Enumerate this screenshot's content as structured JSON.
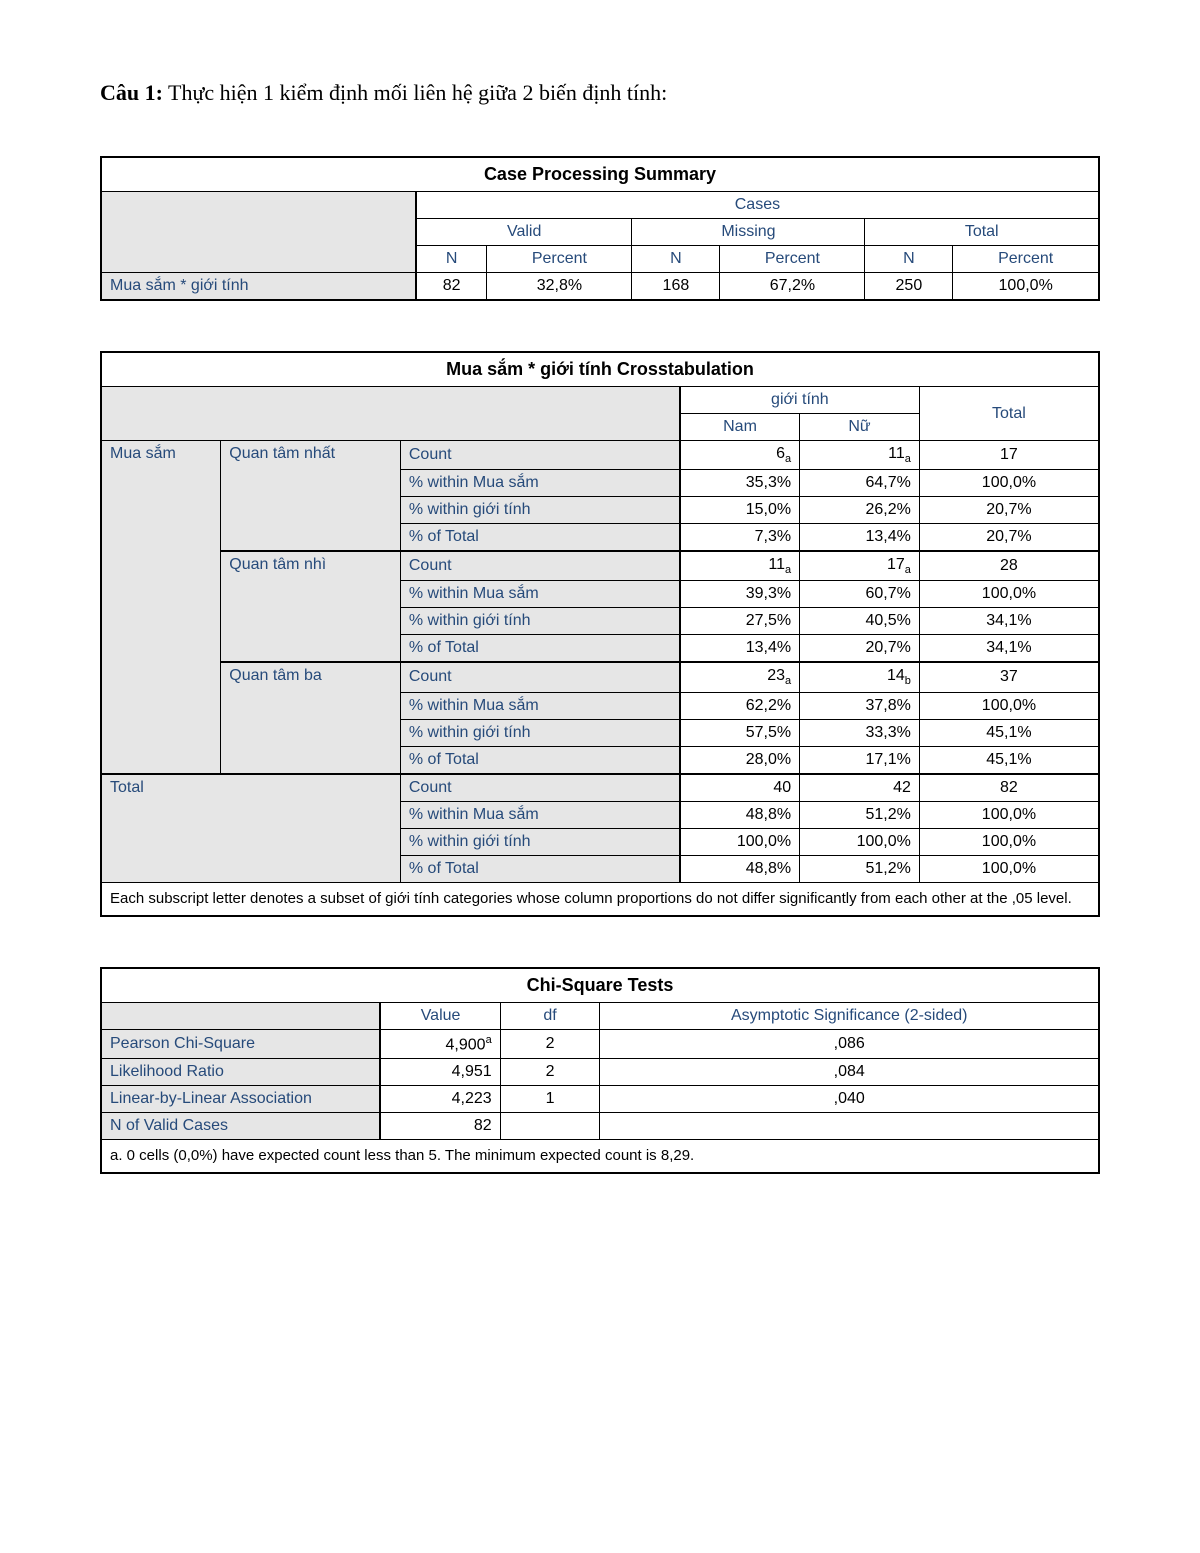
{
  "question": {
    "label_bold": "Câu 1:",
    "text": " Thực hiện 1 kiểm định mối liên hệ giữa 2 biến định tính:"
  },
  "table1": {
    "title": "Case Processing Summary",
    "group_header": "Cases",
    "subgroups": [
      "Valid",
      "Missing",
      "Total"
    ],
    "cols": [
      "N",
      "Percent",
      "N",
      "Percent",
      "N",
      "Percent"
    ],
    "row_label": "Mua sắm * giới tính",
    "values": [
      "82",
      "32,8%",
      "168",
      "67,2%",
      "250",
      "100,0%"
    ]
  },
  "table2": {
    "title": "Mua sắm * giới tính Crosstabulation",
    "group_header": "giới tính",
    "subcols": [
      "Nam",
      "Nữ"
    ],
    "total_col": "Total",
    "left_header": "Mua sắm",
    "categories": [
      {
        "name": "Quan tâm nhất",
        "rows": [
          {
            "label": "Count",
            "nam": "6",
            "nam_sub": "a",
            "nu": "11",
            "nu_sub": "a",
            "total": "17"
          },
          {
            "label": "% within Mua sắm",
            "nam": "35,3%",
            "nu": "64,7%",
            "total": "100,0%"
          },
          {
            "label": "% within giới tính",
            "nam": "15,0%",
            "nu": "26,2%",
            "total": "20,7%"
          },
          {
            "label": "% of Total",
            "nam": "7,3%",
            "nu": "13,4%",
            "total": "20,7%"
          }
        ]
      },
      {
        "name": "Quan tâm nhì",
        "rows": [
          {
            "label": "Count",
            "nam": "11",
            "nam_sub": "a",
            "nu": "17",
            "nu_sub": "a",
            "total": "28"
          },
          {
            "label": "% within Mua sắm",
            "nam": "39,3%",
            "nu": "60,7%",
            "total": "100,0%"
          },
          {
            "label": "% within giới tính",
            "nam": "27,5%",
            "nu": "40,5%",
            "total": "34,1%"
          },
          {
            "label": "% of Total",
            "nam": "13,4%",
            "nu": "20,7%",
            "total": "34,1%"
          }
        ]
      },
      {
        "name": "Quan tâm ba",
        "rows": [
          {
            "label": "Count",
            "nam": "23",
            "nam_sub": "a",
            "nu": "14",
            "nu_sub": "b",
            "total": "37"
          },
          {
            "label": "% within Mua sắm",
            "nam": "62,2%",
            "nu": "37,8%",
            "total": "100,0%"
          },
          {
            "label": "% within giới tính",
            "nam": "57,5%",
            "nu": "33,3%",
            "total": "45,1%"
          },
          {
            "label": "% of Total",
            "nam": "28,0%",
            "nu": "17,1%",
            "total": "45,1%"
          }
        ]
      }
    ],
    "total_label": "Total",
    "total_rows": [
      {
        "label": "Count",
        "nam": "40",
        "nu": "42",
        "total": "82"
      },
      {
        "label": "% within Mua sắm",
        "nam": "48,8%",
        "nu": "51,2%",
        "total": "100,0%"
      },
      {
        "label": "% within giới tính",
        "nam": "100,0%",
        "nu": "100,0%",
        "total": "100,0%"
      },
      {
        "label": "% of Total",
        "nam": "48,8%",
        "nu": "51,2%",
        "total": "100,0%"
      }
    ],
    "note": "Each subscript letter denotes a subset of giới tính categories whose column proportions do not differ significantly from each other at the ,05 level."
  },
  "table3": {
    "title": "Chi-Square Tests",
    "cols": [
      "Value",
      "df",
      "Asymptotic Significance (2-sided)"
    ],
    "rows": [
      {
        "label": "Pearson Chi-Square",
        "value": "4,900",
        "sup": "a",
        "df": "2",
        "sig": ",086"
      },
      {
        "label": "Likelihood Ratio",
        "value": "4,951",
        "df": "2",
        "sig": ",084"
      },
      {
        "label": "Linear-by-Linear Association",
        "value": "4,223",
        "df": "1",
        "sig": ",040"
      },
      {
        "label": "N of Valid Cases",
        "value": "82",
        "df": "",
        "sig": ""
      }
    ],
    "note": "a. 0 cells (0,0%) have expected count less than 5. The minimum expected count is 8,29."
  }
}
